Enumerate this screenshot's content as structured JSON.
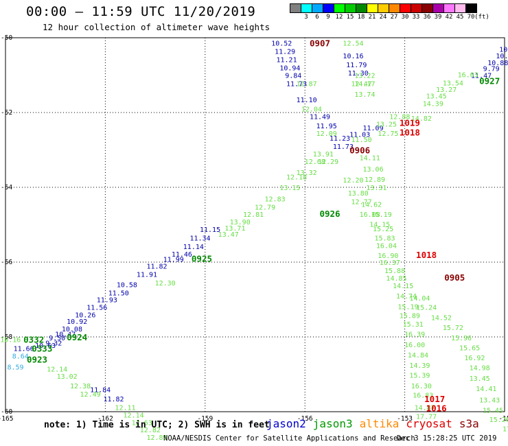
{
  "title": "00:00 – 11:59 UTC 11/20/2019",
  "subtitle": "12 hour collection of altimeter wave heights",
  "legend": {
    "labels": [
      "3",
      "6",
      "9",
      "12",
      "15",
      "18",
      "21",
      "24",
      "27",
      "30",
      "33",
      "36",
      "39",
      "42",
      "45",
      "70",
      "(ft)"
    ],
    "colors": [
      "#808080",
      "#00ffff",
      "#00aaff",
      "#0000ff",
      "#00ff00",
      "#00cc00",
      "#008800",
      "#ffff00",
      "#ffcc00",
      "#ff8800",
      "#ff0000",
      "#cc0000",
      "#880000",
      "#aa00aa",
      "#ff77ff",
      "#ffbbee",
      "#000000"
    ]
  },
  "axes": {
    "lon_ticks": [
      "-165",
      "-162",
      "-159",
      "-156",
      "-153",
      "-15"
    ],
    "lat_ticks": [
      "-50",
      "-52",
      "-54",
      "-56",
      "-58",
      "-60"
    ]
  },
  "satellite_colors": {
    "jason2": "#0000aa",
    "jason3": "#009900",
    "jason3_light": "#66dd44",
    "altika": "#ff8800",
    "cryosat": "#dd0000",
    "s3a": "#880000",
    "sentinel_light": "#33aadd"
  },
  "pass_labels": [
    {
      "text": "0907",
      "lon": -155.55,
      "lat": -50.14,
      "color": "#880000"
    },
    {
      "text": "0927",
      "lon": -150.45,
      "lat": -51.15,
      "color": "#008800"
    },
    {
      "text": "1019",
      "lon": -152.85,
      "lat": -52.27,
      "color": "#dd0000"
    },
    {
      "text": "1018",
      "lon": -152.85,
      "lat": -52.52,
      "color": "#dd0000"
    },
    {
      "text": "0906",
      "lon": -154.35,
      "lat": -53.0,
      "color": "#880000"
    },
    {
      "text": "0926",
      "lon": -155.25,
      "lat": -54.7,
      "color": "#008800"
    },
    {
      "text": "0925",
      "lon": -159.1,
      "lat": -55.9,
      "color": "#008800"
    },
    {
      "text": "1018",
      "lon": -152.35,
      "lat": -55.8,
      "color": "#dd0000"
    },
    {
      "text": "0905",
      "lon": -151.5,
      "lat": -56.4,
      "color": "#880000"
    },
    {
      "text": "0924",
      "lon": -162.85,
      "lat": -58.0,
      "color": "#008800"
    },
    {
      "text": "0332",
      "lon": -164.15,
      "lat": -58.06,
      "color": "#008800"
    },
    {
      "text": "0333",
      "lon": -163.9,
      "lat": -58.3,
      "color": "#008800"
    },
    {
      "text": "0923",
      "lon": -164.05,
      "lat": -58.6,
      "color": "#008800"
    },
    {
      "text": "1017",
      "lon": -152.1,
      "lat": -59.65,
      "color": "#dd0000"
    },
    {
      "text": "1016",
      "lon": -152.05,
      "lat": -59.9,
      "color": "#dd0000"
    },
    {
      "text": "090",
      "lon": -149.35,
      "lat": -60.2,
      "color": "#880000"
    }
  ],
  "tracks": [
    {
      "name": "jason2-0907",
      "color": "#0000aa",
      "points": [
        {
          "lon": -156.7,
          "lat": -50.14,
          "v": "10.52"
        },
        {
          "lon": -156.6,
          "lat": -50.36,
          "v": "11.29"
        },
        {
          "lon": -156.55,
          "lat": -50.58,
          "v": "11.21"
        },
        {
          "lon": -156.45,
          "lat": -50.8,
          "v": "10.94"
        },
        {
          "lon": -156.35,
          "lat": -51.0,
          "v": "9.84"
        },
        {
          "lon": -156.25,
          "lat": -51.22,
          "v": "11.73"
        },
        {
          "lon": -155.95,
          "lat": -51.65,
          "v": "11.10"
        },
        {
          "lon": -155.55,
          "lat": -52.1,
          "v": "11.49"
        },
        {
          "lon": -155.35,
          "lat": -52.35,
          "v": "11.95"
        },
        {
          "lon": -154.95,
          "lat": -52.68,
          "v": "11.23"
        },
        {
          "lon": -154.85,
          "lat": -52.9,
          "v": "11.73"
        },
        {
          "lon": -154.35,
          "lat": -52.58,
          "v": "11.03"
        }
      ]
    },
    {
      "name": "jason2-0927",
      "color": "#0000aa",
      "points": [
        {
          "lon": -149.55,
          "lat": -50.14,
          "v": "10.18"
        },
        {
          "lon": -149.85,
          "lat": -50.3,
          "v": "10.49"
        },
        {
          "lon": -149.95,
          "lat": -50.48,
          "v": "10.29"
        },
        {
          "lon": -150.2,
          "lat": -50.66,
          "v": "10.88"
        },
        {
          "lon": -150.4,
          "lat": -50.82,
          "v": "9.79"
        },
        {
          "lon": -150.7,
          "lat": -51.0,
          "v": "11.47"
        }
      ]
    },
    {
      "name": "jason2-0906",
      "color": "#0000aa",
      "points": [
        {
          "lon": -154.55,
          "lat": -50.48,
          "v": "10.16"
        },
        {
          "lon": -154.45,
          "lat": -50.72,
          "v": "11.79"
        },
        {
          "lon": -154.4,
          "lat": -50.94,
          "v": "11.30"
        },
        {
          "lon": -153.95,
          "lat": -52.4,
          "v": "11.09"
        }
      ]
    },
    {
      "name": "jason2-0925",
      "color": "#0000aa",
      "points": [
        {
          "lon": -158.85,
          "lat": -55.12,
          "v": "11.15"
        },
        {
          "lon": -159.15,
          "lat": -55.35,
          "v": "11.34"
        },
        {
          "lon": -159.35,
          "lat": -55.58,
          "v": "11.14"
        },
        {
          "lon": -159.7,
          "lat": -55.78,
          "v": "11.46"
        },
        {
          "lon": -159.95,
          "lat": -55.92,
          "v": "11.99"
        },
        {
          "lon": -160.45,
          "lat": -56.1,
          "v": "11.82"
        },
        {
          "lon": -160.75,
          "lat": -56.32,
          "v": "11.91"
        },
        {
          "lon": -161.35,
          "lat": -56.6,
          "v": "10.58"
        },
        {
          "lon": -161.6,
          "lat": -56.82,
          "v": "11.50"
        },
        {
          "lon": -161.95,
          "lat": -57.0,
          "v": "11.93"
        },
        {
          "lon": -162.25,
          "lat": -57.2,
          "v": "11.56"
        },
        {
          "lon": -162.6,
          "lat": -57.4,
          "v": "10.26"
        },
        {
          "lon": -162.85,
          "lat": -57.58,
          "v": "10.92"
        },
        {
          "lon": -163.0,
          "lat": -57.78,
          "v": "10.08"
        },
        {
          "lon": -163.2,
          "lat": -57.92,
          "v": "10.47"
        },
        {
          "lon": -163.45,
          "lat": -58.02,
          "v": "9.50"
        },
        {
          "lon": -163.55,
          "lat": -58.16,
          "v": "9.32"
        },
        {
          "lon": -163.8,
          "lat": -58.22,
          "v": "10.63"
        },
        {
          "lon": -164.45,
          "lat": -58.3,
          "v": "11.66"
        }
      ]
    },
    {
      "name": "jason2-0923",
      "color": "#0000aa",
      "points": [
        {
          "lon": -162.15,
          "lat": -59.4,
          "v": "11.84"
        },
        {
          "lon": -161.75,
          "lat": -59.65,
          "v": "11.82"
        }
      ]
    },
    {
      "name": "jason3-0926",
      "color": "#66dd44",
      "points": [
        {
          "lon": -154.55,
          "lat": -50.14,
          "v": "12.54"
        },
        {
          "lon": -154.3,
          "lat": -51.22,
          "v": "12.47"
        },
        {
          "lon": -154.2,
          "lat": -51.5,
          "v": "13.74"
        },
        {
          "lon": -154.2,
          "lat": -51.22,
          "v": "14.17"
        },
        {
          "lon": -154.2,
          "lat": -51.0,
          "v": "13.22"
        },
        {
          "lon": -154.3,
          "lat": -52.72,
          "v": "11.50"
        },
        {
          "lon": -155.95,
          "lat": -51.22,
          "v": "12.87"
        },
        {
          "lon": -155.8,
          "lat": -51.9,
          "v": "12.04"
        },
        {
          "lon": -155.35,
          "lat": -52.55,
          "v": "12.09"
        },
        {
          "lon": -155.3,
          "lat": -53.3,
          "v": "12.29"
        },
        {
          "lon": -155.45,
          "lat": -53.1,
          "v": "13.91"
        },
        {
          "lon": -155.7,
          "lat": -53.3,
          "v": "12.68"
        },
        {
          "lon": -155.95,
          "lat": -53.6,
          "v": "13.32"
        },
        {
          "lon": -156.25,
          "lat": -53.72,
          "v": "12.18"
        },
        {
          "lon": -156.45,
          "lat": -54.0,
          "v": "13.15"
        },
        {
          "lon": -156.9,
          "lat": -54.3,
          "v": "12.83"
        },
        {
          "lon": -157.2,
          "lat": -54.52,
          "v": "12.79"
        },
        {
          "lon": -157.55,
          "lat": -54.72,
          "v": "12.81"
        },
        {
          "lon": -157.95,
          "lat": -54.92,
          "v": "13.90"
        },
        {
          "lon": -158.1,
          "lat": -55.08,
          "v": "13.71"
        },
        {
          "lon": -158.3,
          "lat": -55.25,
          "v": "13.47"
        },
        {
          "lon": -160.2,
          "lat": -56.55,
          "v": "12.30"
        }
      ]
    },
    {
      "name": "jason3-0927",
      "color": "#66dd44",
      "points": [
        {
          "lon": -151.1,
          "lat": -50.98,
          "v": "16.03"
        },
        {
          "lon": -151.55,
          "lat": -51.2,
          "v": "13.54"
        },
        {
          "lon": -151.75,
          "lat": -51.38,
          "v": "13.27"
        },
        {
          "lon": -152.05,
          "lat": -51.55,
          "v": "13.45"
        },
        {
          "lon": -152.15,
          "lat": -51.75,
          "v": "14.39"
        },
        {
          "lon": -152.5,
          "lat": -52.15,
          "v": "14.82"
        },
        {
          "lon": -153.15,
          "lat": -52.1,
          "v": "12.88"
        },
        {
          "lon": -153.55,
          "lat": -52.3,
          "v": "13.25"
        },
        {
          "lon": -153.5,
          "lat": -52.55,
          "v": "12.75"
        }
      ]
    },
    {
      "name": "jason3-0906",
      "color": "#66dd44",
      "points": [
        {
          "lon": -154.05,
          "lat": -53.2,
          "v": "14.11"
        },
        {
          "lon": -153.95,
          "lat": -53.5,
          "v": "13.06"
        },
        {
          "lon": -153.9,
          "lat": -53.78,
          "v": "12.89"
        },
        {
          "lon": -153.85,
          "lat": -54.0,
          "v": "13.31"
        },
        {
          "lon": -154.55,
          "lat": -53.8,
          "v": "12.20"
        },
        {
          "lon": -154.4,
          "lat": -54.15,
          "v": "13.80"
        },
        {
          "lon": -154.3,
          "lat": -54.38,
          "v": "12.77"
        },
        {
          "lon": -154.0,
          "lat": -54.45,
          "v": "14.62"
        },
        {
          "lon": -154.05,
          "lat": -54.72,
          "v": "16.08"
        },
        {
          "lon": -153.7,
          "lat": -54.72,
          "v": "15.19"
        },
        {
          "lon": -153.75,
          "lat": -54.98,
          "v": "14.15"
        },
        {
          "lon": -153.65,
          "lat": -55.1,
          "v": "15.25"
        },
        {
          "lon": -153.6,
          "lat": -55.35,
          "v": "15.83"
        },
        {
          "lon": -153.55,
          "lat": -55.55,
          "v": "16.04"
        },
        {
          "lon": -153.5,
          "lat": -55.82,
          "v": "16.90"
        },
        {
          "lon": -153.45,
          "lat": -56.0,
          "v": "16.37"
        },
        {
          "lon": -153.3,
          "lat": -56.22,
          "v": "15.88"
        },
        {
          "lon": -153.25,
          "lat": -56.42,
          "v": "14.85"
        },
        {
          "lon": -153.05,
          "lat": -56.62,
          "v": "14.15"
        },
        {
          "lon": -152.95,
          "lat": -56.9,
          "v": "14.74"
        },
        {
          "lon": -152.9,
          "lat": -57.18,
          "v": "15.19"
        },
        {
          "lon": -152.85,
          "lat": -57.42,
          "v": "15.89"
        },
        {
          "lon": -152.75,
          "lat": -57.65,
          "v": "15.31"
        },
        {
          "lon": -152.7,
          "lat": -57.92,
          "v": "16.39"
        },
        {
          "lon": -152.7,
          "lat": -58.2,
          "v": "16.00"
        },
        {
          "lon": -152.6,
          "lat": -58.48,
          "v": "14.84"
        },
        {
          "lon": -152.55,
          "lat": -58.75,
          "v": "14.39"
        },
        {
          "lon": -152.55,
          "lat": -59.02,
          "v": "15.39"
        },
        {
          "lon": -152.5,
          "lat": -59.3,
          "v": "16.30"
        },
        {
          "lon": -152.45,
          "lat": -59.55,
          "v": "16.83"
        },
        {
          "lon": -152.4,
          "lat": -59.88,
          "v": "14.87"
        },
        {
          "lon": -152.35,
          "lat": -60.12,
          "v": "17.77"
        }
      ]
    },
    {
      "name": "jason3-1018",
      "color": "#66dd44",
      "points": [
        {
          "lon": -152.55,
          "lat": -56.95,
          "v": "14.04"
        },
        {
          "lon": -152.35,
          "lat": -57.2,
          "v": "15.24"
        },
        {
          "lon": -151.9,
          "lat": -57.48,
          "v": "14.52"
        },
        {
          "lon": -151.55,
          "lat": -57.74,
          "v": "15.72"
        },
        {
          "lon": -151.3,
          "lat": -58.02,
          "v": "15.96"
        },
        {
          "lon": -151.05,
          "lat": -58.28,
          "v": "15.65"
        },
        {
          "lon": -150.9,
          "lat": -58.55,
          "v": "16.92"
        },
        {
          "lon": -150.75,
          "lat": -58.82,
          "v": "14.98"
        },
        {
          "lon": -150.75,
          "lat": -59.1,
          "v": "13.45"
        },
        {
          "lon": -150.55,
          "lat": -59.38,
          "v": "14.41"
        },
        {
          "lon": -150.45,
          "lat": -59.68,
          "v": "13.43"
        },
        {
          "lon": -150.35,
          "lat": -59.95,
          "v": "15.45"
        },
        {
          "lon": -150.15,
          "lat": -60.2,
          "v": "15.26"
        },
        {
          "lon": -149.75,
          "lat": -60.45,
          "v": "17.43"
        }
      ]
    },
    {
      "name": "jason3-0923",
      "color": "#66dd44",
      "points": [
        {
          "lon": -164.85,
          "lat": -58.06,
          "v": "10.16"
        },
        {
          "lon": -163.45,
          "lat": -58.85,
          "v": "12.14"
        },
        {
          "lon": -163.15,
          "lat": -59.05,
          "v": "13.02"
        },
        {
          "lon": -162.75,
          "lat": -59.3,
          "v": "12.38"
        },
        {
          "lon": -162.45,
          "lat": -59.52,
          "v": "12.49"
        },
        {
          "lon": -161.4,
          "lat": -59.88,
          "v": "12.11"
        },
        {
          "lon": -161.15,
          "lat": -60.08,
          "v": "12.14"
        },
        {
          "lon": -160.9,
          "lat": -60.28,
          "v": "12.63"
        },
        {
          "lon": -160.65,
          "lat": -60.48,
          "v": "12.82"
        },
        {
          "lon": -160.45,
          "lat": -60.68,
          "v": "12.89"
        }
      ]
    },
    {
      "name": "sentinel-0923",
      "color": "#33aadd",
      "points": [
        {
          "lon": -164.55,
          "lat": -58.5,
          "v": "8.64"
        },
        {
          "lon": -164.7,
          "lat": -58.8,
          "v": "8.59"
        }
      ]
    }
  ],
  "note": "note: 1) Time is in UTC; 2) SWH is in feet",
  "satellites": [
    "jason2",
    "jason3",
    "altika",
    "cryosat",
    "s3a"
  ],
  "footer": {
    "credit": "NOAA/NESDIS Center for Satellite Applications and Research",
    "timestamp": "Dec  3 15:28:25 UTC 2019"
  }
}
